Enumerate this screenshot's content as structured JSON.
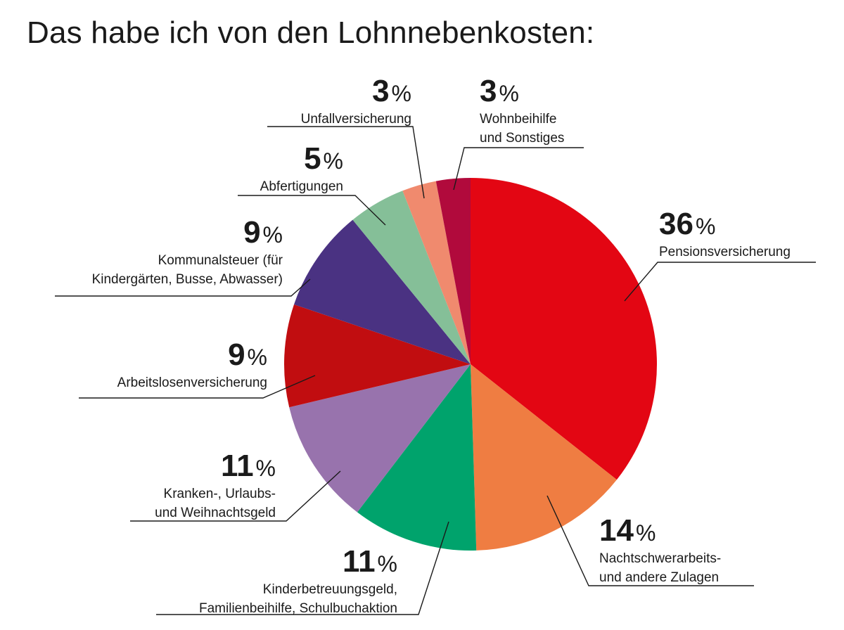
{
  "title": "Das habe ich von den Lohnnebenkosten:",
  "chart_data": {
    "type": "pie",
    "start_angle_deg": 0,
    "direction": "clockwise",
    "slices": [
      {
        "value": 36,
        "label_lines": [
          "Pensionsversicherung"
        ],
        "color": "#e30613"
      },
      {
        "value": 14,
        "label_lines": [
          "Nachtschwerarbeits-",
          "und andere Zulagen"
        ],
        "color": "#ef7d42"
      },
      {
        "value": 11,
        "label_lines": [
          "Kinderbetreuungsgeld,",
          "Familienbeihilfe, Schulbuchaktion"
        ],
        "color": "#00a36c"
      },
      {
        "value": 11,
        "label_lines": [
          "Kranken-, Urlaubs-",
          "und Weihnachtsgeld"
        ],
        "color": "#9873ad"
      },
      {
        "value": 9,
        "label_lines": [
          "Arbeitslosenversicherung"
        ],
        "color": "#c10d10"
      },
      {
        "value": 9,
        "label_lines": [
          "Kommunalsteuer (für",
          "Kindergärten, Busse, Abwasser)"
        ],
        "color": "#4a3282"
      },
      {
        "value": 5,
        "label_lines": [
          "Abfertigungen"
        ],
        "color": "#85bf98"
      },
      {
        "value": 3,
        "label_lines": [
          "Unfallversicherung"
        ],
        "color": "#f08a6e"
      },
      {
        "value": 3,
        "label_lines": [
          "Wohnbeihilfe",
          "und Sonstiges"
        ],
        "color": "#b10a3c"
      }
    ],
    "value_suffix": "%"
  }
}
